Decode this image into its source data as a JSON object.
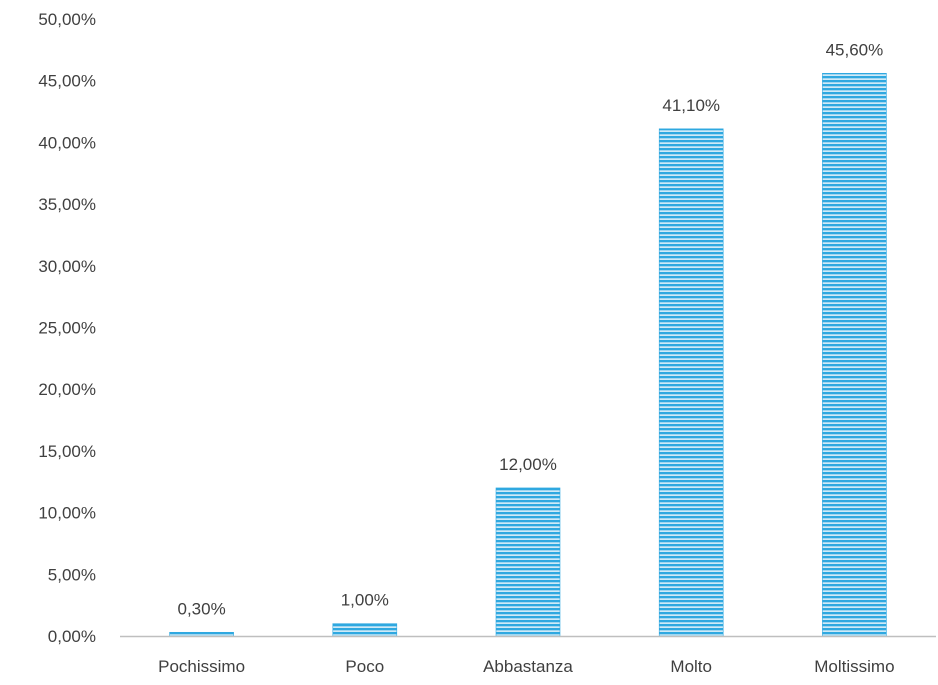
{
  "chart_data": {
    "type": "bar",
    "title": "",
    "xlabel": "",
    "ylabel": "",
    "categories": [
      "Pochissimo",
      "Poco",
      "Abbastanza",
      "Molto",
      "Moltissimo"
    ],
    "values": [
      0.3,
      1.0,
      12.0,
      41.1,
      45.6
    ],
    "data_labels": [
      "0,30%",
      "1,00%",
      "12,00%",
      "41,10%",
      "45,60%"
    ],
    "ylim": [
      0,
      50
    ],
    "yticks": [
      0,
      5,
      10,
      15,
      20,
      25,
      30,
      35,
      40,
      45,
      50
    ],
    "ytick_labels": [
      "0,00%",
      "5,00%",
      "10,00%",
      "15,00%",
      "20,00%",
      "25,00%",
      "30,00%",
      "35,00%",
      "40,00%",
      "45,00%",
      "50,00%"
    ],
    "grid": false,
    "legend": "none",
    "bar_color": "#2fa8e0",
    "bar_pattern": "horizontal-stripes",
    "axis_color": "#bfbfbf",
    "text_color": "#404040"
  }
}
